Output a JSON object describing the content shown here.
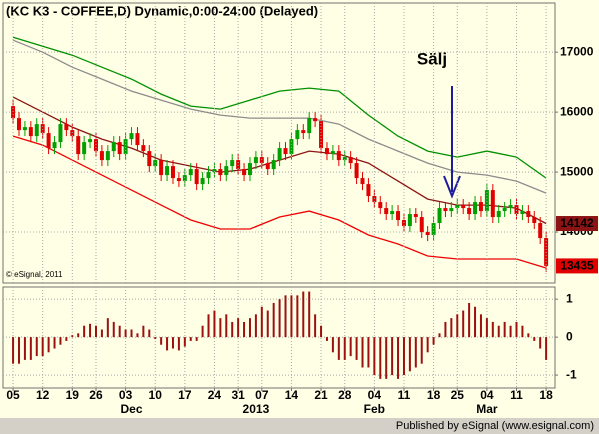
{
  "footer": "Published by eSignal (www.esignal.com)",
  "chart_data": [
    {
      "type": "candlestick",
      "title": "(KC K3 - COFFEE,D) Dynamic,0:00-24:00 (Delayed)",
      "watermark": "© eSignal, 2011",
      "annotations": [
        {
          "text": "Sälj",
          "color": "#1c1c9c"
        }
      ],
      "up_color": "#00a000",
      "down_color": "#e00000",
      "xlim": [
        -1.7,
        91.5
      ],
      "ylim": [
        13150,
        17820
      ],
      "yticks": [
        14000,
        15000,
        16000,
        17000
      ],
      "grid": true,
      "open": [
        16100,
        15900,
        15700,
        15750,
        15600,
        15800,
        15650,
        15400,
        15500,
        15800,
        15700,
        15600,
        15300,
        15500,
        15550,
        15350,
        15200,
        15350,
        15500,
        15300,
        15550,
        15650,
        15450,
        15350,
        15100,
        15200,
        14950,
        15100,
        14900,
        14850,
        14950,
        15050,
        14800,
        14900,
        15000,
        15050,
        14950,
        15100,
        15200,
        15050,
        14950,
        15150,
        15250,
        15150,
        15050,
        15200,
        15400,
        15300,
        15550,
        15700,
        15650,
        15900,
        15850,
        15400,
        15300,
        15350,
        15200,
        15250,
        15150,
        14900,
        14800,
        14600,
        14500,
        14400,
        14300,
        14350,
        14200,
        14100,
        14300,
        14250,
        14000,
        13950,
        14150,
        14400,
        14350,
        14400,
        14450,
        14400,
        14300,
        14500,
        14350,
        14700,
        14250,
        14350,
        14400,
        14450,
        14300,
        14350,
        14250,
        14150,
        13900
      ],
      "high": [
        16200,
        16000,
        15850,
        15850,
        15900,
        15900,
        15750,
        15600,
        15900,
        15900,
        15800,
        15700,
        15600,
        15650,
        15650,
        15450,
        15450,
        15600,
        15600,
        15650,
        15750,
        15750,
        15550,
        15450,
        15300,
        15300,
        15200,
        15200,
        15000,
        15050,
        15150,
        15150,
        15000,
        15100,
        15150,
        15150,
        15200,
        15300,
        15300,
        15150,
        15250,
        15350,
        15350,
        15250,
        15300,
        15500,
        15500,
        15650,
        15800,
        15800,
        16000,
        16000,
        15950,
        15500,
        15450,
        15450,
        15350,
        15350,
        15250,
        15000,
        14900,
        14700,
        14600,
        14500,
        14450,
        14450,
        14300,
        14400,
        14400,
        14350,
        14100,
        14250,
        14500,
        14500,
        14500,
        14550,
        14550,
        14500,
        14600,
        14600,
        14800,
        14800,
        14450,
        14500,
        14550,
        14550,
        14450,
        14450,
        14350,
        14250,
        14000
      ],
      "low": [
        15800,
        15600,
        15600,
        15500,
        15500,
        15550,
        15300,
        15300,
        15400,
        15600,
        15500,
        15200,
        15200,
        15400,
        15250,
        15100,
        15100,
        15250,
        15200,
        15200,
        15450,
        15350,
        15250,
        15000,
        15000,
        14850,
        14850,
        14800,
        14750,
        14750,
        14850,
        14700,
        14700,
        14800,
        14900,
        14850,
        14850,
        15000,
        14950,
        14850,
        14850,
        15050,
        15050,
        14950,
        14950,
        15100,
        15200,
        15200,
        15450,
        15550,
        15550,
        15750,
        15300,
        15200,
        15200,
        15100,
        15100,
        15050,
        14800,
        14700,
        14500,
        14400,
        14300,
        14200,
        14200,
        14100,
        14000,
        14000,
        14150,
        13900,
        13850,
        13850,
        14050,
        14250,
        14250,
        14300,
        14300,
        14200,
        14200,
        14250,
        14250,
        14150,
        14150,
        14250,
        14300,
        14200,
        14200,
        14150,
        14050,
        13800,
        13335
      ],
      "close": [
        15900,
        15700,
        15750,
        15600,
        15800,
        15650,
        15400,
        15500,
        15800,
        15700,
        15600,
        15300,
        15500,
        15550,
        15350,
        15200,
        15350,
        15500,
        15300,
        15550,
        15650,
        15450,
        15350,
        15100,
        15200,
        14950,
        15100,
        14900,
        14850,
        14950,
        15050,
        14800,
        14900,
        15000,
        15050,
        14950,
        15100,
        15200,
        15050,
        14950,
        15150,
        15250,
        15150,
        15050,
        15200,
        15400,
        15300,
        15550,
        15700,
        15650,
        15900,
        15850,
        15400,
        15300,
        15350,
        15200,
        15250,
        15150,
        14900,
        14800,
        14600,
        14500,
        14400,
        14300,
        14350,
        14200,
        14100,
        14300,
        14250,
        14000,
        13950,
        14150,
        14400,
        14350,
        14400,
        14450,
        14400,
        14300,
        14500,
        14350,
        14700,
        14250,
        14350,
        14400,
        14450,
        14300,
        14350,
        14250,
        14150,
        13900,
        13435
      ],
      "series": [
        {
          "color": "#009000",
          "x": [
            0,
            5,
            10,
            15,
            20,
            25,
            30,
            35,
            40,
            45,
            50,
            55,
            60,
            65,
            70,
            75,
            80,
            85,
            90
          ],
          "values": [
            17250,
            17100,
            16950,
            16750,
            16550,
            16300,
            16100,
            16050,
            16200,
            16350,
            16400,
            16350,
            15950,
            15600,
            15350,
            15250,
            15350,
            15250,
            14900
          ]
        },
        {
          "color": "#8c8c8c",
          "x": [
            0,
            5,
            10,
            15,
            20,
            25,
            30,
            35,
            40,
            45,
            50,
            55,
            60,
            65,
            70,
            75,
            80,
            85,
            90
          ],
          "values": [
            17200,
            17000,
            16750,
            16550,
            16350,
            16200,
            16050,
            15950,
            15900,
            15900,
            15900,
            15800,
            15550,
            15350,
            15150,
            15000,
            14950,
            14850,
            14650
          ]
        },
        {
          "color": "#8c1414",
          "x": [
            0,
            5,
            10,
            15,
            20,
            25,
            30,
            35,
            40,
            45,
            50,
            55,
            60,
            65,
            70,
            75,
            80,
            85,
            90
          ],
          "values": [
            16250,
            16000,
            15750,
            15550,
            15400,
            15200,
            15100,
            15000,
            15050,
            15200,
            15350,
            15300,
            15150,
            14850,
            14550,
            14450,
            14450,
            14400,
            14142
          ]
        },
        {
          "color": "#f00000",
          "x": [
            0,
            5,
            10,
            15,
            20,
            25,
            30,
            35,
            40,
            45,
            50,
            55,
            60,
            65,
            70,
            75,
            80,
            85,
            90
          ],
          "values": [
            15600,
            15450,
            15200,
            14950,
            14700,
            14450,
            14200,
            14050,
            14050,
            14250,
            14350,
            14200,
            13950,
            13800,
            13600,
            13550,
            13550,
            13550,
            13400
          ]
        }
      ]
    },
    {
      "type": "bar",
      "color": "#9c1010",
      "xlim": [
        -1.7,
        91.5
      ],
      "ylim": [
        -1.34,
        1.32
      ],
      "yticks": [
        -1,
        0,
        1
      ],
      "grid": true,
      "values": [
        -0.7,
        -0.7,
        -0.6,
        -0.6,
        -0.5,
        -0.5,
        -0.4,
        -0.3,
        -0.2,
        -0.1,
        0.05,
        0.1,
        0.3,
        0.35,
        0.3,
        0.2,
        0.5,
        0.4,
        0.3,
        0.2,
        0.2,
        0.1,
        0.3,
        0.2,
        -0.05,
        -0.2,
        -0.35,
        -0.3,
        -0.35,
        -0.25,
        -0.1,
        -0.1,
        0.3,
        0.6,
        0.7,
        0.5,
        0.6,
        0.4,
        0.5,
        0.4,
        0.5,
        0.6,
        0.8,
        0.7,
        0.9,
        1.0,
        1.1,
        1.1,
        1.1,
        1.2,
        1.2,
        0.6,
        0.3,
        -0.1,
        -0.4,
        -0.6,
        -0.6,
        -0.5,
        -0.6,
        -0.8,
        -0.8,
        -1.0,
        -1.1,
        -1.1,
        -1.0,
        -1.1,
        -1.0,
        -0.9,
        -0.8,
        -0.7,
        -0.4,
        -0.2,
        0.1,
        0.4,
        0.5,
        0.6,
        0.7,
        0.9,
        0.8,
        0.6,
        0.5,
        0.4,
        0.3,
        0.4,
        0.3,
        0.4,
        0.3,
        0.1,
        -0.1,
        -0.3,
        -0.6
      ],
      "xticks": [
        {
          "value": 0,
          "label": "05"
        },
        {
          "value": 5,
          "label": "12"
        },
        {
          "value": 10,
          "label": "19"
        },
        {
          "value": 14,
          "label": "26"
        },
        {
          "value": 19,
          "label": "03"
        },
        {
          "value": 24,
          "label": "10"
        },
        {
          "value": 29,
          "label": "17"
        },
        {
          "value": 34,
          "label": "24"
        },
        {
          "value": 38,
          "label": "31"
        },
        {
          "value": 42,
          "label": "07"
        },
        {
          "value": 47,
          "label": "14"
        },
        {
          "value": 52,
          "label": "21"
        },
        {
          "value": 56,
          "label": "28"
        },
        {
          "value": 61,
          "label": "04"
        },
        {
          "value": 66,
          "label": "11"
        },
        {
          "value": 71,
          "label": "18"
        },
        {
          "value": 75,
          "label": "25"
        },
        {
          "value": 80,
          "label": "04"
        },
        {
          "value": 85,
          "label": "11"
        },
        {
          "value": 90,
          "label": "18"
        }
      ],
      "month_ticks": [
        {
          "value": 20,
          "label": "Dec"
        },
        {
          "value": 41,
          "label": "2013"
        },
        {
          "value": 61,
          "label": "Feb"
        },
        {
          "value": 80,
          "label": "Mar"
        }
      ]
    }
  ]
}
